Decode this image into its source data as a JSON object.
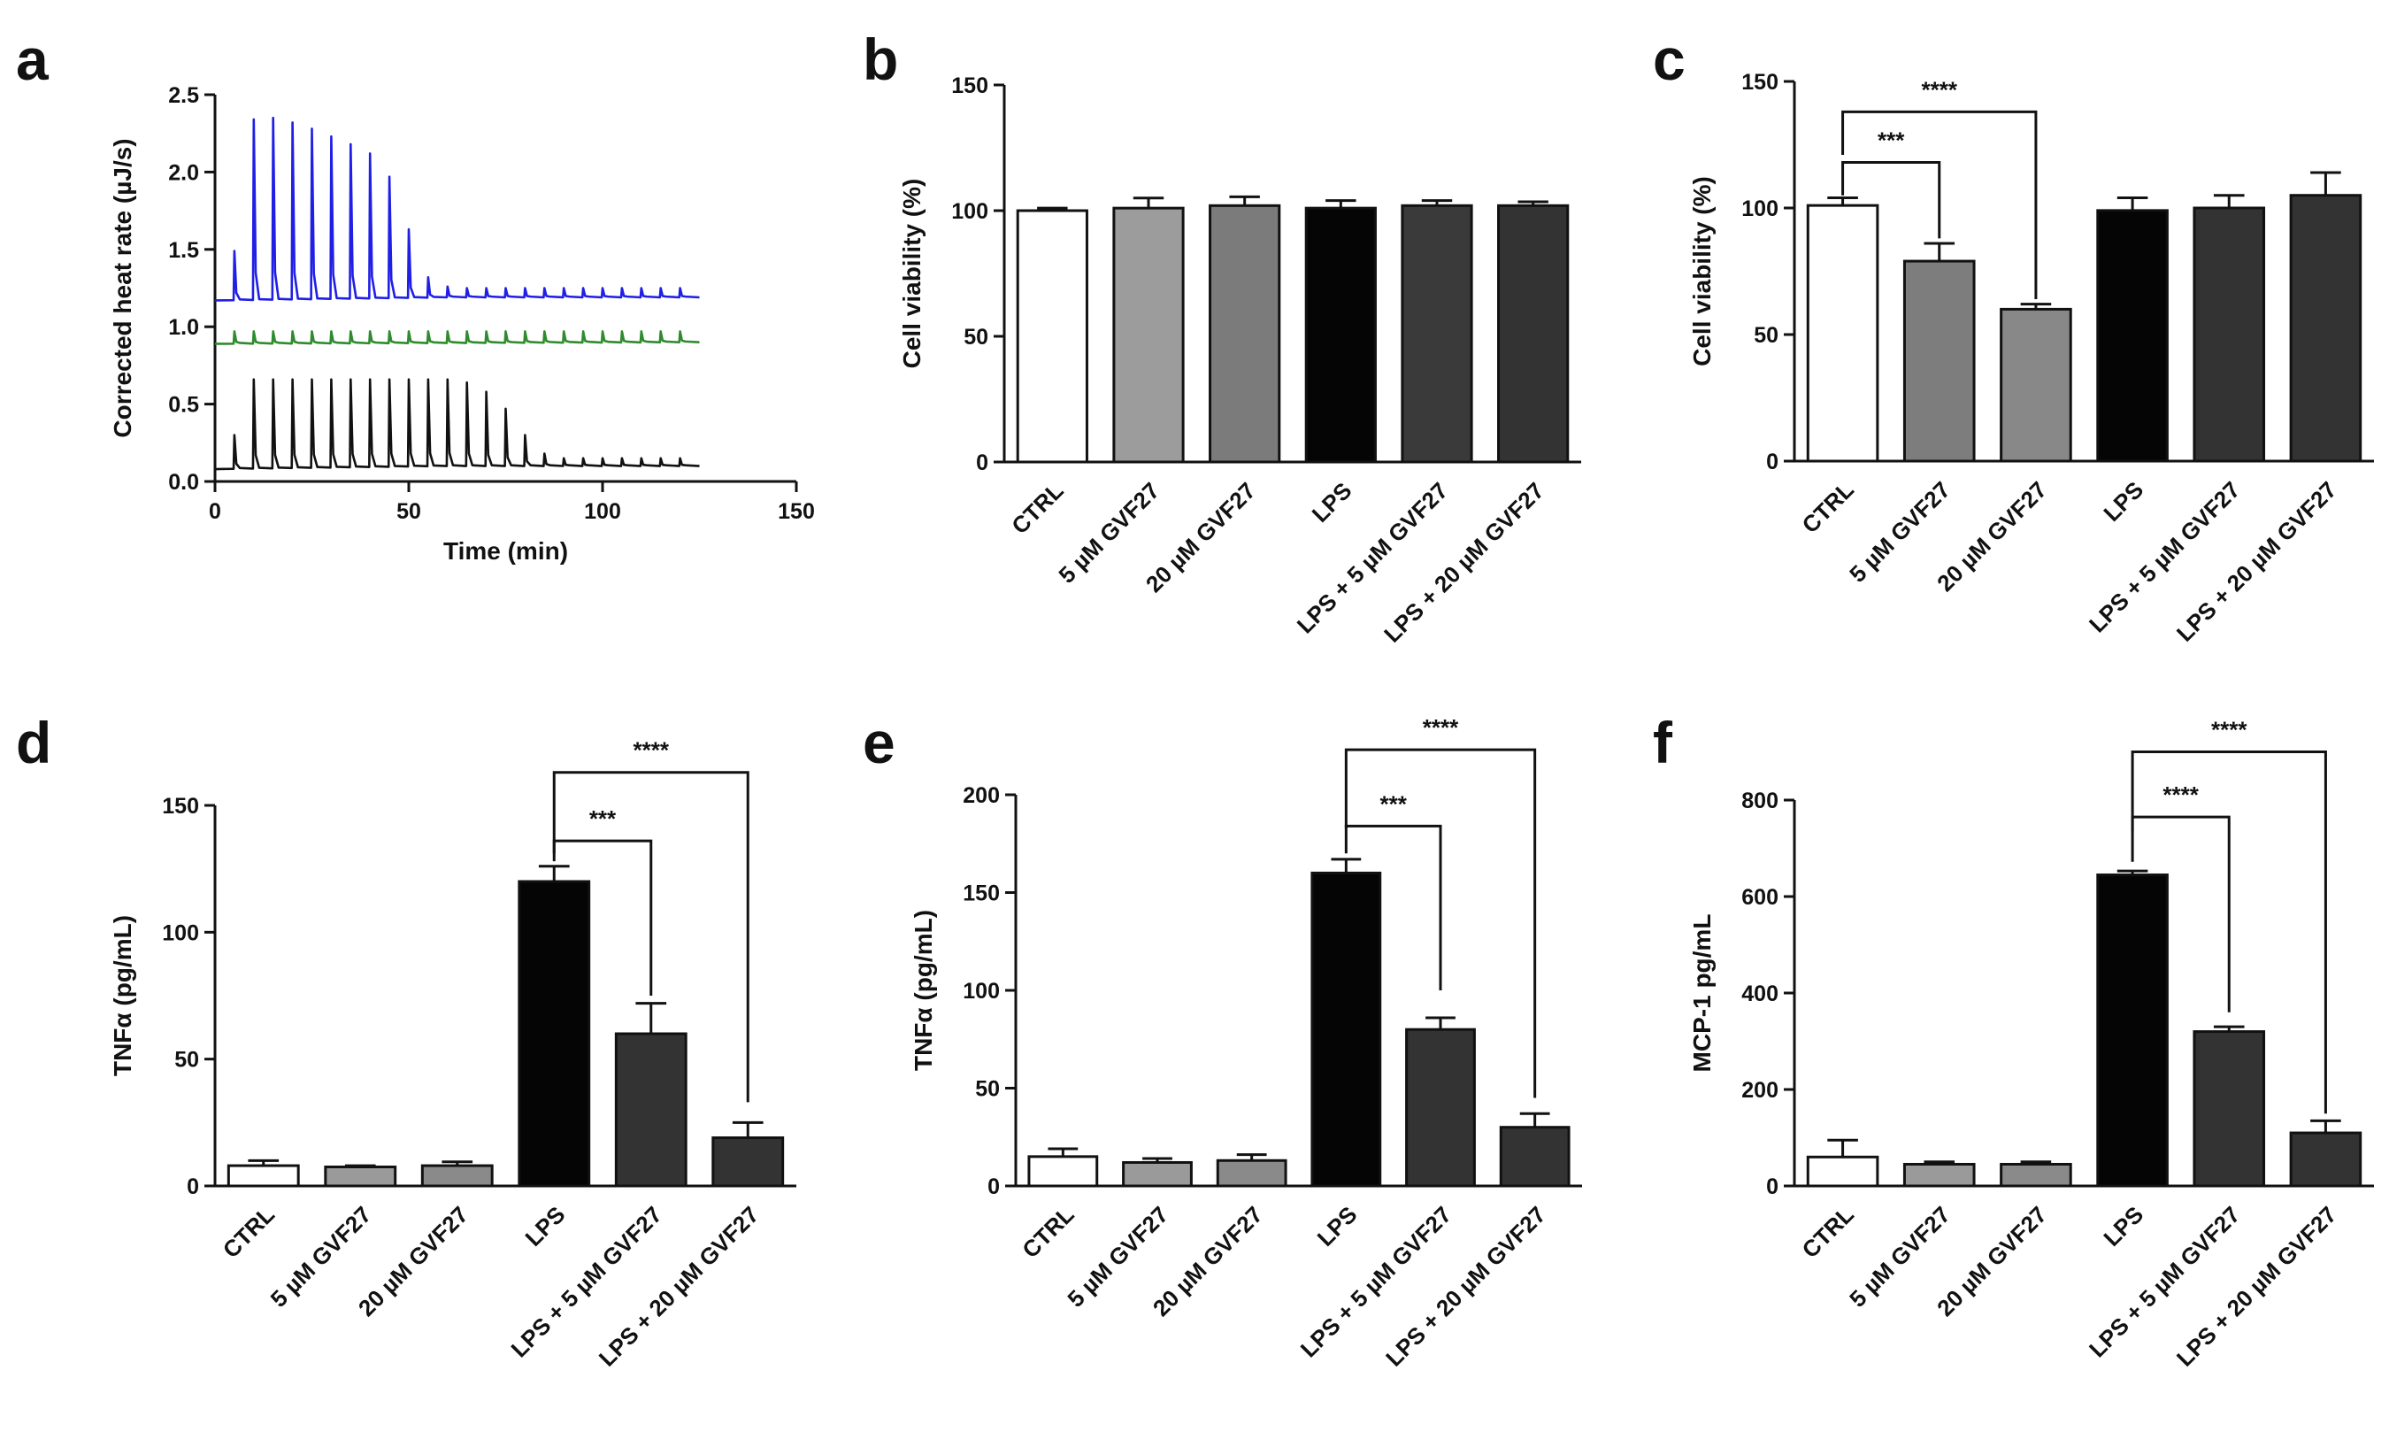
{
  "chart_data": [
    {
      "panel": "a",
      "type": "line",
      "xlabel": "Time (min)",
      "ylabel": "Corrected heat rate (µJ/s)",
      "xlim": [
        0,
        150
      ],
      "ylim": [
        0,
        2.5
      ],
      "xticks": [
        "0",
        "50",
        "100",
        "150"
      ],
      "yticks": [
        "0.0",
        "0.5",
        "1.0",
        "1.5",
        "2.0",
        "2.5"
      ],
      "injection_times": [
        5,
        10,
        15,
        20,
        25,
        30,
        35,
        40,
        45,
        50,
        55,
        60,
        65,
        70,
        75,
        80,
        85,
        90,
        95,
        100,
        105,
        110,
        115,
        120
      ],
      "series": [
        {
          "color": "#1f1fe6",
          "baseline": [
            [
              0,
              1.17
            ],
            [
              30,
              1.18
            ],
            [
              60,
              1.19
            ],
            [
              125,
              1.19
            ]
          ],
          "peaks": [
            1.49,
            2.34,
            2.35,
            2.32,
            2.28,
            2.23,
            2.18,
            2.12,
            1.97,
            1.63,
            1.32,
            1.26,
            1.25,
            1.25,
            1.25,
            1.25,
            1.25,
            1.25,
            1.25,
            1.25,
            1.25,
            1.25,
            1.25,
            1.25
          ]
        },
        {
          "color": "#2e8b2e",
          "baseline": [
            [
              0,
              0.89
            ],
            [
              125,
              0.9
            ]
          ],
          "peaks": [
            0.97,
            0.97,
            0.97,
            0.97,
            0.97,
            0.97,
            0.97,
            0.97,
            0.97,
            0.97,
            0.97,
            0.97,
            0.97,
            0.97,
            0.97,
            0.97,
            0.97,
            0.97,
            0.97,
            0.97,
            0.97,
            0.97,
            0.97,
            0.97
          ]
        },
        {
          "color": "#111111",
          "baseline": [
            [
              0,
              0.08
            ],
            [
              60,
              0.1
            ],
            [
              125,
              0.1
            ]
          ],
          "peaks": [
            0.3,
            0.66,
            0.66,
            0.66,
            0.66,
            0.66,
            0.66,
            0.66,
            0.66,
            0.66,
            0.66,
            0.66,
            0.64,
            0.58,
            0.47,
            0.3,
            0.18,
            0.15,
            0.15,
            0.15,
            0.15,
            0.15,
            0.15,
            0.15
          ]
        }
      ]
    },
    {
      "panel": "b",
      "type": "bar",
      "ylabel": "Cell viability (%)",
      "ylim": [
        0,
        150
      ],
      "yticks": [
        "0",
        "50",
        "100",
        "150"
      ],
      "categories": [
        "CTRL",
        "5 µM GVF27",
        "20 µM GVF27",
        "LPS",
        "LPS + 5 µM GVF27",
        "LPS + 20 µM GVF27"
      ],
      "values": [
        100,
        101,
        102,
        101,
        102,
        102
      ],
      "errors": [
        1,
        4,
        3.5,
        3,
        2,
        1.5
      ],
      "colors": [
        "#ffffff",
        "#9c9c9c",
        "#7b7b7b",
        "#050505",
        "#3a3a3a",
        "#333333"
      ],
      "brackets": []
    },
    {
      "panel": "c",
      "type": "bar",
      "ylabel": "Cell viability (%)",
      "ylim": [
        0,
        150
      ],
      "yticks": [
        "0",
        "50",
        "100",
        "150"
      ],
      "categories": [
        "CTRL",
        "5 µM GVF27",
        "20 µM GVF27",
        "LPS",
        "LPS + 5 µM GVF27",
        "LPS + 20 µM GVF27"
      ],
      "values": [
        101,
        79,
        60,
        99,
        100,
        105
      ],
      "errors": [
        3,
        7,
        2,
        5,
        5,
        9
      ],
      "colors": [
        "#ffffff",
        "#7d7d7d",
        "#888888",
        "#050505",
        "#333333",
        "#333333"
      ],
      "brackets": [
        {
          "from": 0,
          "to": 1,
          "top": 118,
          "left_end": 105,
          "right_end": 88,
          "label": "***"
        },
        {
          "from": 0,
          "to": 2,
          "top": 138,
          "left_end": 121,
          "right_end": 64,
          "label": "****"
        }
      ]
    },
    {
      "panel": "d",
      "type": "bar",
      "ylabel": "TNFα (pg/mL)",
      "ylim": [
        0,
        150
      ],
      "yticks": [
        "0",
        "50",
        "100",
        "150"
      ],
      "categories": [
        "CTRL",
        "5 µM GVF27",
        "20 µM GVF27",
        "LPS",
        "LPS + 5 µM GVF27",
        "LPS + 20 µM GVF27"
      ],
      "values": [
        8,
        7.5,
        8,
        120,
        60,
        19
      ],
      "errors": [
        2,
        0.5,
        1.5,
        6,
        12,
        6
      ],
      "colors": [
        "#ffffff",
        "#9a9a9a",
        "#8a8a8a",
        "#050505",
        "#333333",
        "#333333"
      ],
      "brackets": [
        {
          "from": 3,
          "to": 4,
          "top": 136,
          "left_end": 128,
          "right_end": 75,
          "label": "***"
        },
        {
          "from": 3,
          "to": 5,
          "top": 163,
          "left_end": 131,
          "right_end": 33,
          "label": "****"
        }
      ]
    },
    {
      "panel": "e",
      "type": "bar",
      "ylabel": "TNFα (pg/mL)",
      "ylim": [
        0,
        200
      ],
      "yticks": [
        "0",
        "50",
        "100",
        "150",
        "200"
      ],
      "categories": [
        "CTRL",
        "5 µM GVF27",
        "20 µM GVF27",
        "LPS",
        "LPS + 5 µM GVF27",
        "LPS + 20 µM GVF27"
      ],
      "values": [
        15,
        12,
        13,
        160,
        80,
        30
      ],
      "errors": [
        4,
        2,
        3,
        7,
        6,
        7
      ],
      "colors": [
        "#ffffff",
        "#9a9a9a",
        "#8a8a8a",
        "#050505",
        "#333333",
        "#333333"
      ],
      "brackets": [
        {
          "from": 3,
          "to": 4,
          "top": 184,
          "left_end": 170,
          "right_end": 100,
          "label": "***"
        },
        {
          "from": 3,
          "to": 5,
          "top": 223,
          "left_end": 183,
          "right_end": 45,
          "label": "****"
        }
      ]
    },
    {
      "panel": "f",
      "type": "bar",
      "ylabel": "MCP-1 pg/mL",
      "ylim": [
        0,
        800
      ],
      "yticks": [
        "0",
        "200",
        "400",
        "600",
        "800"
      ],
      "categories": [
        "CTRL",
        "5 µM GVF27",
        "20 µM GVF27",
        "LPS",
        "LPS + 5 µM GVF27",
        "LPS + 20 µM GVF27"
      ],
      "values": [
        60,
        45,
        45,
        645,
        320,
        110
      ],
      "errors": [
        35,
        5,
        5,
        8,
        10,
        25
      ],
      "colors": [
        "#ffffff",
        "#9a9a9a",
        "#8a8a8a",
        "#050505",
        "#333333",
        "#333333"
      ],
      "brackets": [
        {
          "from": 3,
          "to": 4,
          "top": 765,
          "left_end": 735,
          "right_end": 360,
          "label": "****"
        },
        {
          "from": 3,
          "to": 5,
          "top": 900,
          "left_end": 672,
          "right_end": 150,
          "label": "****"
        }
      ]
    }
  ]
}
